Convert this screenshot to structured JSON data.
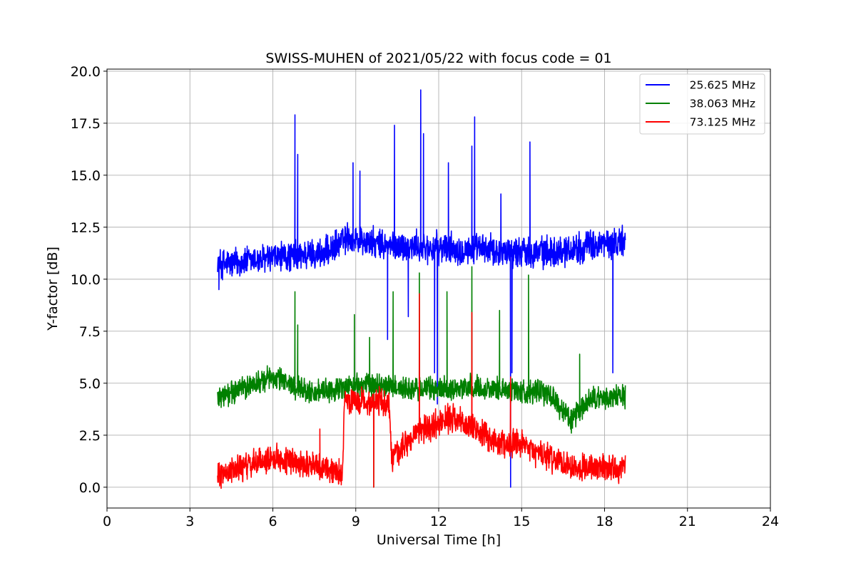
{
  "chart_data": {
    "type": "line",
    "title": "SWISS-MUHEN of 2021/05/22 with focus code = 01",
    "xlabel": "Universal Time [h]",
    "ylabel": "Y-factor [dB]",
    "xlim": [
      0,
      24
    ],
    "ylim": [
      -1.0,
      20.1
    ],
    "x_ticks": [
      0,
      3,
      6,
      9,
      12,
      15,
      18,
      21,
      24
    ],
    "x_tick_labels": [
      "0",
      "3",
      "6",
      "9",
      "12",
      "15",
      "18",
      "21",
      "24"
    ],
    "y_ticks": [
      0.0,
      2.5,
      5.0,
      7.5,
      10.0,
      12.5,
      15.0,
      17.5,
      20.0
    ],
    "y_tick_labels": [
      "0.0",
      "2.5",
      "5.0",
      "7.5",
      "10.0",
      "12.5",
      "15.0",
      "17.5",
      "20.0"
    ],
    "grid": true,
    "legend_position": "top-right",
    "series": [
      {
        "name": "25.625 MHz",
        "color": "#0000ff",
        "x_range": [
          4.0,
          18.75
        ],
        "baseline": [
          [
            4.0,
            10.7
          ],
          [
            6.0,
            11.0
          ],
          [
            8.0,
            11.3
          ],
          [
            8.7,
            12.0
          ],
          [
            10.0,
            11.6
          ],
          [
            12.0,
            11.5
          ],
          [
            14.0,
            11.4
          ],
          [
            16.0,
            11.3
          ],
          [
            18.0,
            11.7
          ],
          [
            18.75,
            11.8
          ]
        ],
        "noise_amplitude": 0.9,
        "peaks": [
          [
            6.8,
            17.9
          ],
          [
            6.9,
            16.0
          ],
          [
            8.9,
            15.6
          ],
          [
            9.15,
            15.2
          ],
          [
            10.4,
            17.4
          ],
          [
            11.35,
            19.1
          ],
          [
            11.45,
            17.0
          ],
          [
            12.35,
            15.6
          ],
          [
            13.2,
            16.4
          ],
          [
            13.3,
            17.8
          ],
          [
            14.25,
            14.1
          ],
          [
            15.3,
            16.6
          ]
        ],
        "dips": [
          [
            4.05,
            9.5
          ],
          [
            10.15,
            7.1
          ],
          [
            10.9,
            8.2
          ],
          [
            11.85,
            5.5
          ],
          [
            11.95,
            4.0
          ],
          [
            14.6,
            0.0
          ],
          [
            14.65,
            5.5
          ],
          [
            18.3,
            5.5
          ]
        ]
      },
      {
        "name": "38.063 MHz",
        "color": "#008000",
        "x_range": [
          4.0,
          18.75
        ],
        "baseline": [
          [
            4.0,
            4.3
          ],
          [
            6.0,
            5.3
          ],
          [
            7.5,
            4.5
          ],
          [
            9.0,
            4.9
          ],
          [
            10.0,
            4.9
          ],
          [
            11.0,
            4.7
          ],
          [
            13.0,
            4.8
          ],
          [
            14.5,
            4.7
          ],
          [
            16.0,
            4.5
          ],
          [
            16.8,
            3.2
          ],
          [
            17.5,
            4.2
          ],
          [
            18.75,
            4.4
          ]
        ],
        "noise_amplitude": 0.7,
        "peaks": [
          [
            6.8,
            9.4
          ],
          [
            6.9,
            7.8
          ],
          [
            8.95,
            8.3
          ],
          [
            9.5,
            7.2
          ],
          [
            10.35,
            9.4
          ],
          [
            11.3,
            10.3
          ],
          [
            12.3,
            9.4
          ],
          [
            13.2,
            10.6
          ],
          [
            14.2,
            8.5
          ],
          [
            15.25,
            10.2
          ],
          [
            17.1,
            6.4
          ]
        ],
        "dips": [
          [
            9.65,
            0.0
          ],
          [
            16.8,
            2.6
          ]
        ]
      },
      {
        "name": "73.125 MHz",
        "color": "#ff0000",
        "x_range": [
          4.0,
          18.75
        ],
        "baseline": [
          [
            4.0,
            0.6
          ],
          [
            6.0,
            1.4
          ],
          [
            7.5,
            1.1
          ],
          [
            8.5,
            0.6
          ],
          [
            8.6,
            4.1
          ],
          [
            10.2,
            4.1
          ],
          [
            10.3,
            1.3
          ],
          [
            11.2,
            2.6
          ],
          [
            12.5,
            3.4
          ],
          [
            14.0,
            2.2
          ],
          [
            15.0,
            2.0
          ],
          [
            16.0,
            1.4
          ],
          [
            17.0,
            1.0
          ],
          [
            18.75,
            0.9
          ]
        ],
        "noise_amplitude": 0.8,
        "peaks": [
          [
            7.7,
            2.8
          ],
          [
            11.3,
            9.3
          ],
          [
            13.2,
            8.4
          ],
          [
            14.6,
            5.3
          ]
        ],
        "dips": [
          [
            9.65,
            0.0
          ]
        ]
      }
    ]
  }
}
